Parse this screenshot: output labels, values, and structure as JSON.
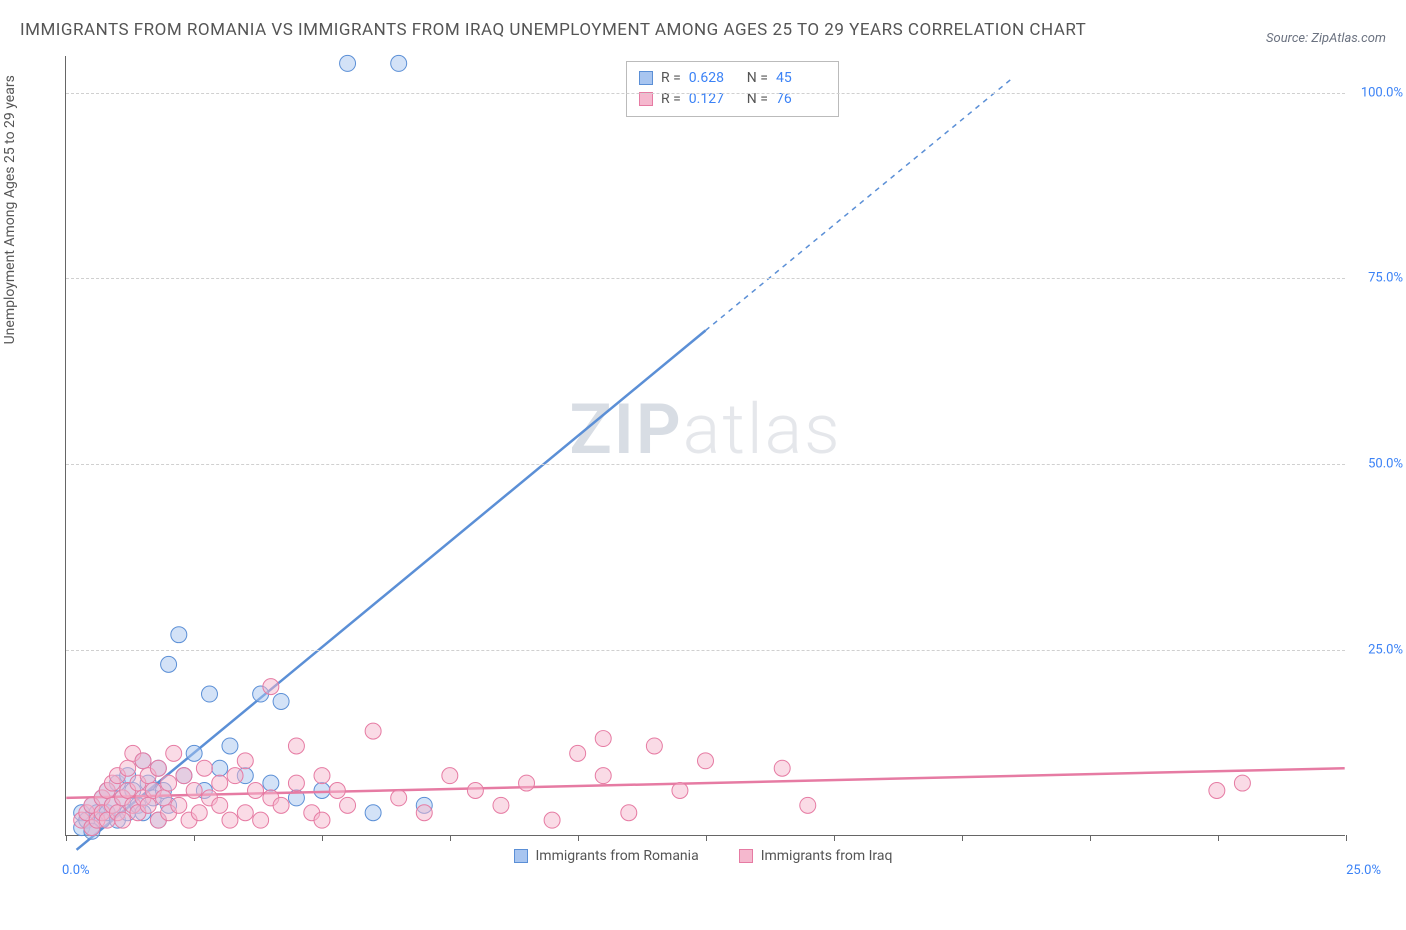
{
  "title": "IMMIGRANTS FROM ROMANIA VS IMMIGRANTS FROM IRAQ UNEMPLOYMENT AMONG AGES 25 TO 29 YEARS CORRELATION CHART",
  "source": "Source: ZipAtlas.com",
  "y_axis_label": "Unemployment Among Ages 25 to 29 years",
  "watermark_bold": "ZIP",
  "watermark_light": "atlas",
  "chart": {
    "type": "scatter",
    "xlim": [
      0,
      25
    ],
    "ylim": [
      0,
      105
    ],
    "x_ticks": [
      0,
      2.5,
      5,
      7.5,
      10,
      12.5,
      15,
      17.5,
      20,
      22.5,
      25
    ],
    "y_ticks": [
      25,
      50,
      75,
      100
    ],
    "y_tick_labels": [
      "25.0%",
      "50.0%",
      "75.0%",
      "100.0%"
    ],
    "x_origin_label": "0.0%",
    "x_max_label": "25.0%",
    "grid_color": "#d0d0d0",
    "background_color": "#ffffff",
    "marker_radius": 8,
    "marker_opacity": 0.5,
    "series": [
      {
        "name": "Immigrants from Romania",
        "color_fill": "#a8c5f0",
        "color_stroke": "#5b8fd6",
        "R": "0.628",
        "N": "45",
        "regression": {
          "x1": 0.2,
          "y1": -2,
          "x2": 12.5,
          "y2": 68,
          "x2_dash": 18.5,
          "y2_dash": 102
        },
        "points": [
          [
            0.3,
            1
          ],
          [
            0.3,
            3
          ],
          [
            0.4,
            2
          ],
          [
            0.5,
            4
          ],
          [
            0.5,
            1
          ],
          [
            0.6,
            3
          ],
          [
            0.7,
            2
          ],
          [
            0.7,
            5
          ],
          [
            0.8,
            3
          ],
          [
            0.8,
            6
          ],
          [
            0.9,
            4
          ],
          [
            1.0,
            2
          ],
          [
            1.0,
            7
          ],
          [
            1.1,
            5
          ],
          [
            1.2,
            3
          ],
          [
            1.2,
            8
          ],
          [
            1.3,
            6
          ],
          [
            1.4,
            4
          ],
          [
            1.5,
            10
          ],
          [
            1.5,
            3
          ],
          [
            1.6,
            7
          ],
          [
            1.7,
            5
          ],
          [
            1.8,
            9
          ],
          [
            1.9,
            6
          ],
          [
            2.0,
            23
          ],
          [
            2.2,
            27
          ],
          [
            2.3,
            8
          ],
          [
            2.5,
            11
          ],
          [
            2.7,
            6
          ],
          [
            2.8,
            19
          ],
          [
            3.0,
            9
          ],
          [
            3.2,
            12
          ],
          [
            3.5,
            8
          ],
          [
            3.8,
            19
          ],
          [
            4.0,
            7
          ],
          [
            4.2,
            18
          ],
          [
            4.5,
            5
          ],
          [
            5.0,
            6
          ],
          [
            5.5,
            104
          ],
          [
            6.0,
            3
          ],
          [
            6.5,
            104
          ],
          [
            7.0,
            4
          ],
          [
            2.0,
            4
          ],
          [
            1.8,
            2
          ],
          [
            0.5,
            0.5
          ]
        ]
      },
      {
        "name": "Immigrants from Iraq",
        "color_fill": "#f5b8ce",
        "color_stroke": "#e67ba3",
        "R": "0.127",
        "N": "76",
        "regression": {
          "x1": 0,
          "y1": 5,
          "x2": 25,
          "y2": 9
        },
        "points": [
          [
            0.3,
            2
          ],
          [
            0.4,
            3
          ],
          [
            0.5,
            1
          ],
          [
            0.5,
            4
          ],
          [
            0.6,
            2
          ],
          [
            0.7,
            5
          ],
          [
            0.7,
            3
          ],
          [
            0.8,
            6
          ],
          [
            0.8,
            2
          ],
          [
            0.9,
            4
          ],
          [
            0.9,
            7
          ],
          [
            1.0,
            3
          ],
          [
            1.0,
            8
          ],
          [
            1.1,
            5
          ],
          [
            1.1,
            2
          ],
          [
            1.2,
            6
          ],
          [
            1.2,
            9
          ],
          [
            1.3,
            4
          ],
          [
            1.3,
            11
          ],
          [
            1.4,
            7
          ],
          [
            1.4,
            3
          ],
          [
            1.5,
            5
          ],
          [
            1.5,
            10
          ],
          [
            1.6,
            8
          ],
          [
            1.6,
            4
          ],
          [
            1.7,
            6
          ],
          [
            1.8,
            2
          ],
          [
            1.8,
            9
          ],
          [
            1.9,
            5
          ],
          [
            2.0,
            7
          ],
          [
            2.0,
            3
          ],
          [
            2.1,
            11
          ],
          [
            2.2,
            4
          ],
          [
            2.3,
            8
          ],
          [
            2.4,
            2
          ],
          [
            2.5,
            6
          ],
          [
            2.6,
            3
          ],
          [
            2.7,
            9
          ],
          [
            2.8,
            5
          ],
          [
            3.0,
            7
          ],
          [
            3.0,
            4
          ],
          [
            3.2,
            2
          ],
          [
            3.3,
            8
          ],
          [
            3.5,
            10
          ],
          [
            3.5,
            3
          ],
          [
            3.7,
            6
          ],
          [
            3.8,
            2
          ],
          [
            4.0,
            5
          ],
          [
            4.0,
            20
          ],
          [
            4.2,
            4
          ],
          [
            4.5,
            7
          ],
          [
            4.5,
            12
          ],
          [
            4.8,
            3
          ],
          [
            5.0,
            8
          ],
          [
            5.0,
            2
          ],
          [
            5.3,
            6
          ],
          [
            5.5,
            4
          ],
          [
            6.0,
            14
          ],
          [
            6.5,
            5
          ],
          [
            7.0,
            3
          ],
          [
            7.5,
            8
          ],
          [
            8.0,
            6
          ],
          [
            8.5,
            4
          ],
          [
            9.0,
            7
          ],
          [
            9.5,
            2
          ],
          [
            10.0,
            11
          ],
          [
            10.5,
            13
          ],
          [
            10.5,
            8
          ],
          [
            11.0,
            3
          ],
          [
            11.5,
            12
          ],
          [
            12.0,
            6
          ],
          [
            12.5,
            10
          ],
          [
            14.0,
            9
          ],
          [
            14.5,
            4
          ],
          [
            22.5,
            6
          ],
          [
            23.0,
            7
          ]
        ]
      }
    ]
  },
  "legend": {
    "series1": "Immigrants from Romania",
    "series2": "Immigrants from Iraq"
  },
  "stats": {
    "r_label": "R =",
    "n_label": "N ="
  }
}
